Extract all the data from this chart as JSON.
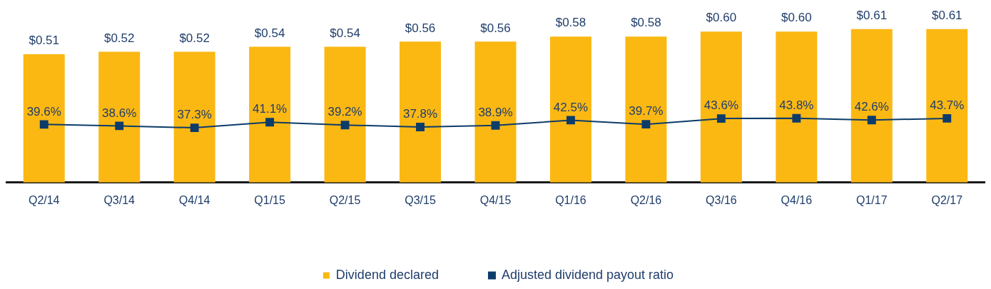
{
  "chart_data": {
    "type": "bar",
    "categories": [
      "Q2/14",
      "Q3/14",
      "Q4/14",
      "Q1/15",
      "Q2/15",
      "Q3/15",
      "Q4/15",
      "Q1/16",
      "Q2/16",
      "Q3/16",
      "Q4/16",
      "Q1/17",
      "Q2/17"
    ],
    "tick_labels": "x",
    "grid": false,
    "legend": "bottom",
    "marker": "square",
    "line_style": "solid",
    "series": [
      {
        "name": "Dividend declared",
        "color": "#fbb813",
        "values": [
          0.51,
          0.52,
          0.52,
          0.54,
          0.54,
          0.56,
          0.56,
          0.58,
          0.58,
          0.6,
          0.6,
          0.61,
          0.61
        ],
        "value_labels": [
          "$0.51",
          "$0.52",
          "$0.52",
          "$0.54",
          "$0.54",
          "$0.56",
          "$0.56",
          "$0.58",
          "$0.58",
          "$0.60",
          "$0.60",
          "$0.61",
          "$0.61"
        ]
      },
      {
        "name": "Adjusted dividend payout ratio",
        "type": "line",
        "axis": "y2",
        "color": "#0c3c6a",
        "values": [
          39.6,
          38.6,
          37.3,
          41.1,
          39.2,
          37.8,
          38.9,
          42.5,
          39.7,
          43.6,
          43.8,
          42.6,
          43.7
        ],
        "value_labels": [
          "39.6%",
          "38.6%",
          "37.3%",
          "41.1%",
          "39.2%",
          "37.8%",
          "38.9%",
          "42.5%",
          "39.7%",
          "43.6%",
          "43.8%",
          "42.6%",
          "43.7%"
        ]
      }
    ]
  }
}
